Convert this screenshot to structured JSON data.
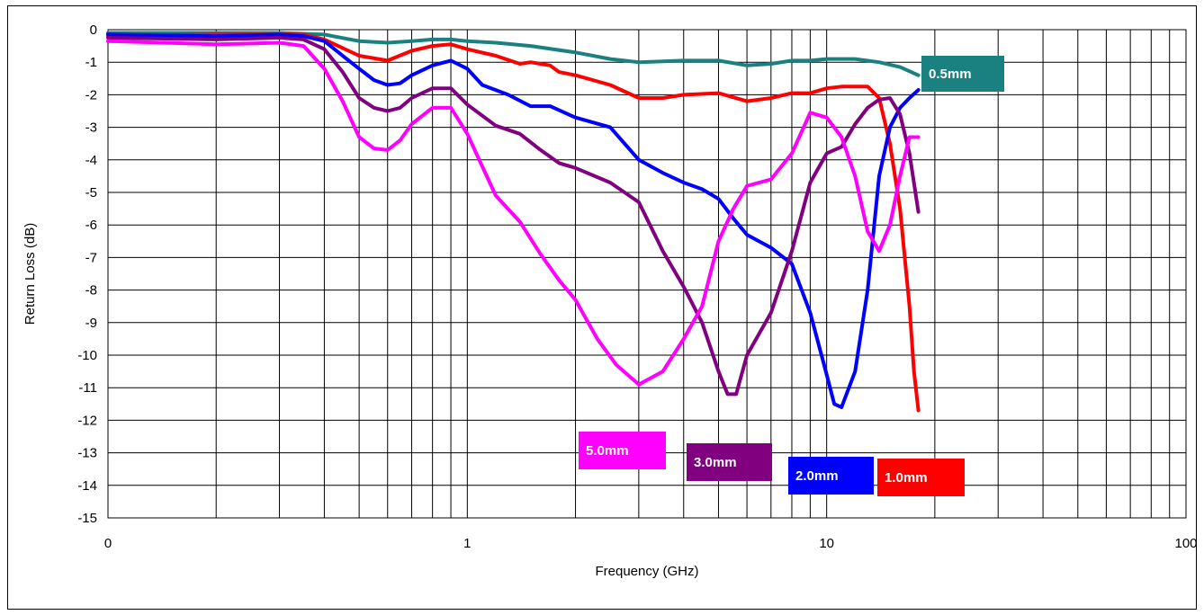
{
  "chart_data": {
    "type": "line",
    "xlabel": "Frequency (GHz)",
    "ylabel": "Return Loss (dB)",
    "xscale": "log",
    "xlim": [
      0.1,
      100
    ],
    "ylim": [
      -15,
      0
    ],
    "grid": true,
    "x_tick_labels": [
      "0",
      "1",
      "10",
      "100"
    ],
    "y_ticks": [
      0,
      -1,
      -2,
      -3,
      -4,
      -5,
      -6,
      -7,
      -8,
      -9,
      -10,
      -11,
      -12,
      -13,
      -14,
      -15
    ],
    "series": [
      {
        "name": "0.5mm",
        "color": "#1a8080",
        "points": [
          [
            0.1,
            -0.1
          ],
          [
            0.2,
            -0.1
          ],
          [
            0.3,
            -0.1
          ],
          [
            0.4,
            -0.15
          ],
          [
            0.5,
            -0.35
          ],
          [
            0.6,
            -0.4
          ],
          [
            0.7,
            -0.35
          ],
          [
            0.8,
            -0.3
          ],
          [
            0.9,
            -0.3
          ],
          [
            1.0,
            -0.35
          ],
          [
            1.2,
            -0.4
          ],
          [
            1.5,
            -0.5
          ],
          [
            2.0,
            -0.7
          ],
          [
            2.5,
            -0.9
          ],
          [
            3.0,
            -1.0
          ],
          [
            4.0,
            -0.95
          ],
          [
            5.0,
            -0.95
          ],
          [
            6.0,
            -1.1
          ],
          [
            7.0,
            -1.05
          ],
          [
            8.0,
            -0.95
          ],
          [
            9.0,
            -0.95
          ],
          [
            10.0,
            -0.9
          ],
          [
            12.0,
            -0.9
          ],
          [
            14.0,
            -1.0
          ],
          [
            16.0,
            -1.15
          ],
          [
            18.0,
            -1.4
          ]
        ]
      },
      {
        "name": "1.0mm",
        "color": "#ff0000",
        "points": [
          [
            0.1,
            -0.2
          ],
          [
            0.2,
            -0.15
          ],
          [
            0.3,
            -0.15
          ],
          [
            0.35,
            -0.15
          ],
          [
            0.4,
            -0.3
          ],
          [
            0.5,
            -0.8
          ],
          [
            0.6,
            -0.95
          ],
          [
            0.7,
            -0.65
          ],
          [
            0.8,
            -0.5
          ],
          [
            0.9,
            -0.45
          ],
          [
            1.0,
            -0.6
          ],
          [
            1.2,
            -0.8
          ],
          [
            1.4,
            -1.05
          ],
          [
            1.5,
            -1.0
          ],
          [
            1.6,
            -1.05
          ],
          [
            1.7,
            -1.1
          ],
          [
            1.8,
            -1.3
          ],
          [
            2.0,
            -1.4
          ],
          [
            2.5,
            -1.7
          ],
          [
            3.0,
            -2.1
          ],
          [
            3.5,
            -2.1
          ],
          [
            4.0,
            -2.0
          ],
          [
            5.0,
            -1.95
          ],
          [
            6.0,
            -2.2
          ],
          [
            7.0,
            -2.1
          ],
          [
            8.0,
            -1.95
          ],
          [
            9.0,
            -1.95
          ],
          [
            10.0,
            -1.8
          ],
          [
            11.0,
            -1.75
          ],
          [
            13.0,
            -1.75
          ],
          [
            14.0,
            -2.1
          ],
          [
            15.0,
            -3.5
          ],
          [
            16.0,
            -5.5
          ],
          [
            17.0,
            -8.5
          ],
          [
            17.5,
            -10.5
          ],
          [
            18.0,
            -11.7
          ]
        ]
      },
      {
        "name": "2.0mm",
        "color": "#0000ff",
        "points": [
          [
            0.1,
            -0.15
          ],
          [
            0.2,
            -0.2
          ],
          [
            0.3,
            -0.15
          ],
          [
            0.35,
            -0.2
          ],
          [
            0.4,
            -0.35
          ],
          [
            0.45,
            -0.8
          ],
          [
            0.5,
            -1.2
          ],
          [
            0.55,
            -1.55
          ],
          [
            0.6,
            -1.7
          ],
          [
            0.65,
            -1.65
          ],
          [
            0.7,
            -1.4
          ],
          [
            0.8,
            -1.1
          ],
          [
            0.9,
            -0.95
          ],
          [
            1.0,
            -1.2
          ],
          [
            1.1,
            -1.7
          ],
          [
            1.3,
            -2.0
          ],
          [
            1.5,
            -2.35
          ],
          [
            1.7,
            -2.35
          ],
          [
            2.0,
            -2.7
          ],
          [
            2.5,
            -3.0
          ],
          [
            3.0,
            -4.0
          ],
          [
            3.5,
            -4.4
          ],
          [
            4.0,
            -4.7
          ],
          [
            4.5,
            -4.9
          ],
          [
            5.0,
            -5.2
          ],
          [
            5.5,
            -5.8
          ],
          [
            6.0,
            -6.3
          ],
          [
            7.0,
            -6.7
          ],
          [
            8.0,
            -7.2
          ],
          [
            9.0,
            -8.7
          ],
          [
            10.0,
            -10.6
          ],
          [
            10.5,
            -11.5
          ],
          [
            11.0,
            -11.6
          ],
          [
            12.0,
            -10.5
          ],
          [
            13.0,
            -8.0
          ],
          [
            14.0,
            -4.5
          ],
          [
            15.0,
            -3.0
          ],
          [
            16.0,
            -2.4
          ],
          [
            17.0,
            -2.1
          ],
          [
            18.0,
            -1.85
          ]
        ]
      },
      {
        "name": "3.0mm",
        "color": "#800080",
        "points": [
          [
            0.1,
            -0.25
          ],
          [
            0.2,
            -0.3
          ],
          [
            0.3,
            -0.25
          ],
          [
            0.35,
            -0.3
          ],
          [
            0.4,
            -0.6
          ],
          [
            0.45,
            -1.3
          ],
          [
            0.5,
            -2.1
          ],
          [
            0.55,
            -2.4
          ],
          [
            0.6,
            -2.5
          ],
          [
            0.65,
            -2.4
          ],
          [
            0.7,
            -2.1
          ],
          [
            0.8,
            -1.8
          ],
          [
            0.9,
            -1.8
          ],
          [
            1.0,
            -2.3
          ],
          [
            1.2,
            -2.95
          ],
          [
            1.4,
            -3.2
          ],
          [
            1.6,
            -3.7
          ],
          [
            1.8,
            -4.1
          ],
          [
            2.0,
            -4.25
          ],
          [
            2.5,
            -4.7
          ],
          [
            3.0,
            -5.3
          ],
          [
            3.5,
            -6.8
          ],
          [
            4.0,
            -7.9
          ],
          [
            4.5,
            -9.0
          ],
          [
            5.0,
            -10.5
          ],
          [
            5.3,
            -11.2
          ],
          [
            5.6,
            -11.2
          ],
          [
            6.0,
            -10.0
          ],
          [
            7.0,
            -8.7
          ],
          [
            8.0,
            -6.8
          ],
          [
            9.0,
            -4.7
          ],
          [
            10.0,
            -3.8
          ],
          [
            11.0,
            -3.6
          ],
          [
            12.0,
            -2.9
          ],
          [
            13.0,
            -2.4
          ],
          [
            14.0,
            -2.15
          ],
          [
            15.0,
            -2.1
          ],
          [
            16.0,
            -2.6
          ],
          [
            17.0,
            -3.8
          ],
          [
            18.0,
            -5.6
          ]
        ]
      },
      {
        "name": "5.0mm",
        "color": "#ff00ff",
        "points": [
          [
            0.1,
            -0.35
          ],
          [
            0.2,
            -0.45
          ],
          [
            0.3,
            -0.4
          ],
          [
            0.35,
            -0.5
          ],
          [
            0.4,
            -1.2
          ],
          [
            0.45,
            -2.2
          ],
          [
            0.5,
            -3.3
          ],
          [
            0.55,
            -3.65
          ],
          [
            0.6,
            -3.7
          ],
          [
            0.65,
            -3.4
          ],
          [
            0.7,
            -2.9
          ],
          [
            0.8,
            -2.4
          ],
          [
            0.9,
            -2.4
          ],
          [
            1.0,
            -3.2
          ],
          [
            1.1,
            -4.2
          ],
          [
            1.2,
            -5.1
          ],
          [
            1.4,
            -5.9
          ],
          [
            1.6,
            -6.9
          ],
          [
            1.8,
            -7.7
          ],
          [
            2.0,
            -8.3
          ],
          [
            2.3,
            -9.5
          ],
          [
            2.6,
            -10.3
          ],
          [
            3.0,
            -10.9
          ],
          [
            3.5,
            -10.5
          ],
          [
            4.0,
            -9.5
          ],
          [
            4.5,
            -8.5
          ],
          [
            5.0,
            -6.5
          ],
          [
            5.5,
            -5.5
          ],
          [
            6.0,
            -4.8
          ],
          [
            7.0,
            -4.6
          ],
          [
            8.0,
            -3.8
          ],
          [
            9.0,
            -2.55
          ],
          [
            10.0,
            -2.7
          ],
          [
            11.0,
            -3.3
          ],
          [
            12.0,
            -4.5
          ],
          [
            13.0,
            -6.2
          ],
          [
            14.0,
            -6.8
          ],
          [
            15.0,
            -6.0
          ],
          [
            16.0,
            -4.5
          ],
          [
            17.0,
            -3.3
          ],
          [
            18.0,
            -3.3
          ]
        ]
      }
    ],
    "labels": [
      {
        "text": "0.5mm",
        "color": "#1a8080"
      },
      {
        "text": "1.0mm",
        "color": "#ff0000"
      },
      {
        "text": "2.0mm",
        "color": "#0000ff"
      },
      {
        "text": "3.0mm",
        "color": "#800080"
      },
      {
        "text": "5.0mm",
        "color": "#ff00ff"
      }
    ]
  }
}
